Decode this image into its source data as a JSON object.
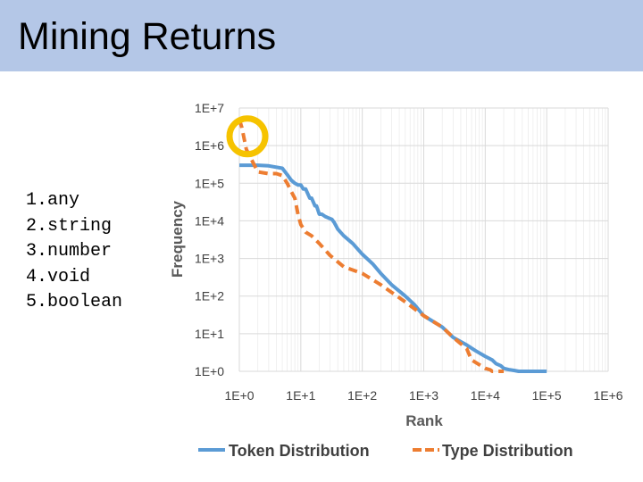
{
  "slide": {
    "title": "Mining Returns",
    "list_items": [
      "1.any",
      "2.string",
      "3.number",
      "4.void",
      "5.boolean"
    ]
  },
  "chart_data": {
    "type": "line",
    "xlabel": "Rank",
    "ylabel": "Frequency",
    "x_scale": "log",
    "y_scale": "log",
    "xlim": [
      1,
      1000000
    ],
    "ylim": [
      1,
      10000000
    ],
    "x_ticks": [
      "1E+0",
      "1E+1",
      "1E+2",
      "1E+3",
      "1E+4",
      "1E+5",
      "1E+6"
    ],
    "y_ticks": [
      "1E+0",
      "1E+1",
      "1E+2",
      "1E+3",
      "1E+4",
      "1E+5",
      "1E+6",
      "1E+7"
    ],
    "grid": true,
    "legend_position": "bottom",
    "annotation": "circle-highlight-at-type-distribution-peak",
    "series": [
      {
        "name": "Token Distribution",
        "color": "#5b9bd5",
        "style": "solid",
        "x": [
          1,
          2,
          3,
          5,
          6,
          7,
          8,
          9,
          10,
          11,
          12,
          14,
          15,
          17,
          18,
          20,
          22,
          25,
          28,
          32,
          35,
          40,
          50,
          70,
          100,
          150,
          200,
          300,
          500,
          700,
          1000,
          2000,
          3000,
          5000,
          7000,
          10000,
          13000,
          15000,
          18000,
          20000,
          25000,
          30000,
          35000,
          40000,
          45000,
          55000,
          58000,
          60000,
          60000,
          65000,
          70000,
          100000
        ],
        "y": [
          300000,
          300000,
          290000,
          250000,
          170000,
          120000,
          100000,
          90000,
          90000,
          70000,
          70000,
          40000,
          40000,
          25000,
          25000,
          15000,
          15000,
          13000,
          12000,
          11000,
          9000,
          6000,
          4000,
          2500,
          1300,
          700,
          400,
          200,
          100,
          60,
          30,
          15,
          8,
          5,
          3.5,
          2.5,
          2,
          1.6,
          1.4,
          1.2,
          1.1,
          1.05,
          1.0,
          1.0,
          1.0,
          1.0,
          1.0,
          1.0,
          1,
          1,
          1,
          1
        ]
      },
      {
        "name": "Type Distribution",
        "color": "#ed7d31",
        "style": "dashed",
        "x": [
          1,
          1.1,
          1.2,
          1.3,
          1.5,
          2,
          3,
          4,
          5,
          6,
          7,
          8,
          9,
          10,
          12,
          15,
          20,
          30,
          50,
          100,
          200,
          500,
          1000,
          2000,
          3000,
          5000,
          6000,
          8000,
          10000,
          12000,
          13000,
          15000,
          20000
        ],
        "y": [
          5000000,
          3000000,
          1500000,
          800000,
          500000,
          200000,
          180000,
          180000,
          160000,
          100000,
          60000,
          40000,
          15000,
          8000,
          5000,
          4000,
          2500,
          1200,
          600,
          400,
          200,
          70,
          30,
          15,
          8,
          4,
          2,
          1.5,
          1.2,
          1.1,
          1,
          1,
          1
        ]
      }
    ]
  }
}
